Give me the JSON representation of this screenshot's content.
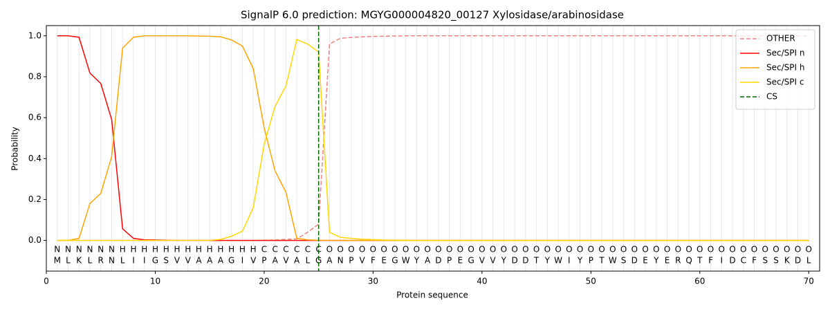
{
  "chart_data": {
    "type": "line",
    "title": "SignalP 6.0 prediction: MGYG000004820_00127 Xylosidase/arabinosidase",
    "x_label": "Protein sequence",
    "y_label": "Probability",
    "x": [
      1,
      2,
      3,
      4,
      5,
      6,
      7,
      8,
      9,
      10,
      11,
      12,
      13,
      14,
      15,
      16,
      17,
      18,
      19,
      20,
      21,
      22,
      23,
      24,
      25,
      26,
      27,
      28,
      29,
      30,
      31,
      32,
      33,
      34,
      35,
      36,
      37,
      38,
      39,
      40,
      41,
      42,
      43,
      44,
      45,
      46,
      47,
      48,
      49,
      50,
      51,
      52,
      53,
      54,
      55,
      56,
      57,
      58,
      59,
      60,
      61,
      62,
      63,
      64,
      65,
      66,
      67,
      68,
      69,
      70
    ],
    "sequence": [
      "M",
      "L",
      "K",
      "L",
      "R",
      "N",
      "L",
      "I",
      "I",
      "G",
      "S",
      "V",
      "V",
      "A",
      "A",
      "A",
      "G",
      "I",
      "V",
      "P",
      "A",
      "V",
      "A",
      "L",
      "G",
      "A",
      "N",
      "P",
      "V",
      "F",
      "E",
      "G",
      "W",
      "Y",
      "A",
      "D",
      "P",
      "E",
      "G",
      "V",
      "V",
      "Y",
      "D",
      "D",
      "T",
      "Y",
      "W",
      "I",
      "Y",
      "P",
      "T",
      "W",
      "S",
      "D",
      "E",
      "Y",
      "E",
      "R",
      "Q",
      "T",
      "F",
      "I",
      "D",
      "C",
      "F",
      "S",
      "S",
      "K",
      "D",
      "L"
    ],
    "region_labels": [
      "N",
      "N",
      "N",
      "N",
      "N",
      "N",
      "H",
      "H",
      "H",
      "H",
      "H",
      "H",
      "H",
      "H",
      "H",
      "H",
      "H",
      "H",
      "H",
      "C",
      "C",
      "C",
      "C",
      "C",
      "C",
      "O",
      "O",
      "O",
      "O",
      "O",
      "O",
      "O",
      "O",
      "O",
      "O",
      "O",
      "O",
      "O",
      "O",
      "O",
      "O",
      "O",
      "O",
      "O",
      "O",
      "O",
      "O",
      "O",
      "O",
      "O",
      "O",
      "O",
      "O",
      "O",
      "O",
      "O",
      "O",
      "O",
      "O",
      "O",
      "O",
      "O",
      "O",
      "O",
      "O",
      "O",
      "O",
      "O",
      "O",
      "O"
    ],
    "label_colors": {
      "N": "#ff0000",
      "H": "#ffa500",
      "C": "#ffd700",
      "O": "#808080"
    },
    "series": [
      {
        "name": "OTHER",
        "color": "#f08080",
        "dash": "dashed",
        "values": [
          0,
          0,
          0,
          0,
          0,
          0,
          0,
          0,
          0,
          0,
          0,
          0,
          0,
          0,
          0,
          0,
          0,
          0,
          0,
          0.001,
          0.002,
          0.005,
          0.007,
          0.04,
          0.08,
          0.96,
          0.988,
          0.992,
          0.995,
          0.997,
          0.998,
          0.999,
          1.0,
          1.0,
          1.0,
          1.0,
          1.0,
          1.0,
          1.0,
          1.0,
          1.0,
          1.0,
          1.0,
          1.0,
          1.0,
          1.0,
          1.0,
          1.0,
          1.0,
          1.0,
          1.0,
          1.0,
          1.0,
          1.0,
          1.0,
          1.0,
          1.0,
          1.0,
          1.0,
          1.0,
          1.0,
          1.0,
          1.0,
          1.0,
          1.0,
          1.0,
          1.0,
          1.0,
          1.0,
          1.0
        ]
      },
      {
        "name": "Sec/SPI n",
        "color": "#ff0000",
        "dash": "solid",
        "values": [
          1.0,
          1.0,
          0.993,
          0.818,
          0.767,
          0.59,
          0.057,
          0.01,
          0.003,
          0.002,
          0.001,
          0,
          0,
          0,
          0,
          0,
          0,
          0,
          0,
          0,
          0,
          0,
          0,
          0,
          0,
          0,
          0,
          0,
          0,
          0,
          0,
          0,
          0,
          0,
          0,
          0,
          0,
          0,
          0,
          0,
          0,
          0,
          0,
          0,
          0,
          0,
          0,
          0,
          0,
          0,
          0,
          0,
          0,
          0,
          0,
          0,
          0,
          0,
          0,
          0,
          0,
          0,
          0,
          0,
          0,
          0,
          0,
          0,
          0,
          0
        ]
      },
      {
        "name": "Sec/SPI h",
        "color": "#ffa500",
        "dash": "solid",
        "values": [
          0,
          0,
          0.01,
          0.18,
          0.23,
          0.41,
          0.94,
          0.993,
          1.0,
          1.0,
          1.0,
          1.0,
          1.0,
          0.999,
          0.998,
          0.995,
          0.98,
          0.95,
          0.84,
          0.55,
          0.34,
          0.235,
          0.01,
          0.003,
          0.001,
          0,
          0,
          0,
          0,
          0,
          0,
          0,
          0,
          0,
          0,
          0,
          0,
          0,
          0,
          0,
          0,
          0,
          0,
          0,
          0,
          0,
          0,
          0,
          0,
          0,
          0,
          0,
          0,
          0,
          0,
          0,
          0,
          0,
          0,
          0,
          0,
          0,
          0,
          0,
          0,
          0,
          0,
          0,
          0,
          0
        ]
      },
      {
        "name": "Sec/SPI c",
        "color": "#ffd700",
        "dash": "solid",
        "values": [
          0,
          0,
          0,
          0,
          0,
          0,
          0,
          0,
          0,
          0,
          0,
          0,
          0,
          0,
          0,
          0.005,
          0.02,
          0.045,
          0.16,
          0.47,
          0.655,
          0.755,
          0.982,
          0.96,
          0.92,
          0.04,
          0.015,
          0.01,
          0.006,
          0.004,
          0.002,
          0.001,
          0,
          0,
          0,
          0,
          0,
          0,
          0,
          0,
          0,
          0,
          0,
          0,
          0,
          0,
          0,
          0,
          0,
          0,
          0,
          0,
          0,
          0,
          0,
          0,
          0,
          0,
          0,
          0,
          0,
          0,
          0,
          0,
          0,
          0,
          0,
          0,
          0,
          0
        ]
      }
    ],
    "cleavage_site": {
      "name": "CS",
      "x": 25,
      "color": "#006400"
    },
    "xlim": [
      0,
      71
    ],
    "ylim": [
      -0.15,
      1.05
    ],
    "xticks": [
      0,
      10,
      20,
      30,
      40,
      50,
      60,
      70
    ],
    "yticks": [
      {
        "value": 0,
        "label": "0.0"
      },
      {
        "value": 0.2,
        "label": "0.2"
      },
      {
        "value": 0.4,
        "label": "0.4"
      },
      {
        "value": 0.6,
        "label": "0.6"
      },
      {
        "value": 0.8,
        "label": "0.8"
      },
      {
        "value": 1.0,
        "label": "1.0"
      }
    ],
    "grid": true,
    "legend": "upper right"
  }
}
